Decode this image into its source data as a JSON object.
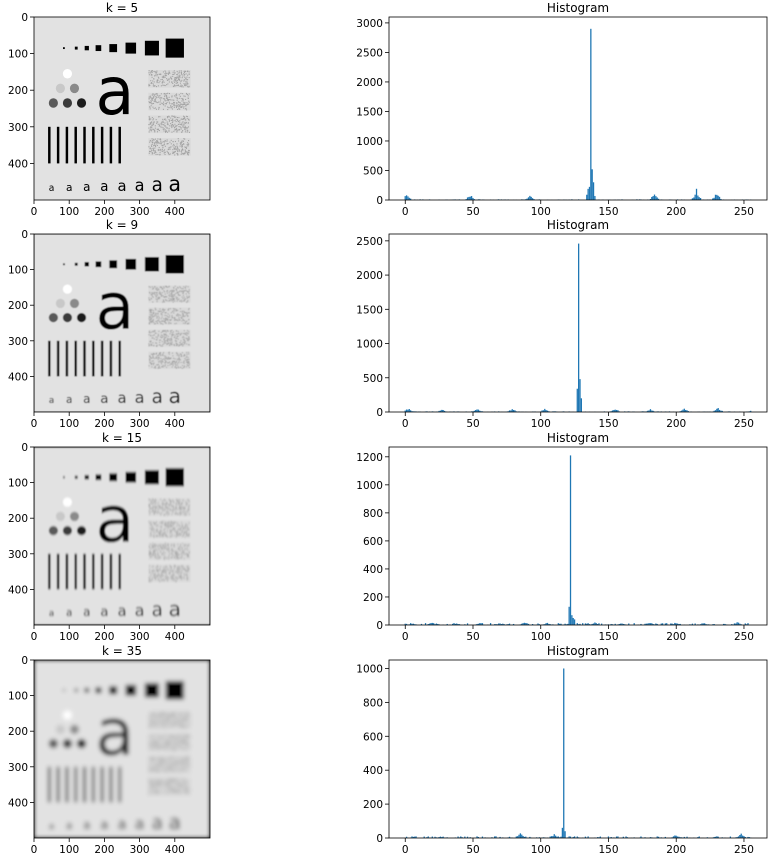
{
  "rows": [
    {
      "image_title": "k = 5",
      "hist_title": "Histogram"
    },
    {
      "image_title": "k = 9",
      "hist_title": "Histogram"
    },
    {
      "image_title": "k = 15",
      "hist_title": "Histogram"
    },
    {
      "image_title": "k = 35",
      "hist_title": "Histogram"
    }
  ],
  "chart_data": [
    {
      "type": "image",
      "title": "k = 5",
      "description_kind": "box-filtered test pattern",
      "xticks": [
        "0",
        "100",
        "200",
        "300",
        "400"
      ],
      "yticks": [
        "0",
        "100",
        "200",
        "300",
        "400"
      ],
      "xlim": [
        0,
        500
      ],
      "ylim": [
        500,
        0
      ],
      "blur_level": 5
    },
    {
      "type": "bar",
      "title": "Histogram",
      "xticks": [
        "0",
        "50",
        "100",
        "150",
        "200",
        "250"
      ],
      "yticks": [
        "0",
        "500",
        "1000",
        "1500",
        "2000",
        "2500",
        "3000"
      ],
      "xlim": [
        -12,
        267
      ],
      "ylim": [
        0,
        3100
      ],
      "color": "#1f77b4",
      "clusters": [
        [
          1,
          100
        ],
        [
          48,
          100
        ],
        [
          92,
          90
        ],
        [
          137,
          420
        ],
        [
          184,
          110
        ],
        [
          215,
          150
        ],
        [
          230,
          120
        ]
      ],
      "peaks": [
        [
          137,
          2900
        ],
        [
          138,
          520
        ],
        [
          139,
          300
        ],
        [
          215,
          190
        ]
      ],
      "baseline_noise": 12
    },
    {
      "type": "image",
      "title": "k = 9",
      "xticks": [
        "0",
        "100",
        "200",
        "300",
        "400"
      ],
      "yticks": [
        "0",
        "100",
        "200",
        "300",
        "400"
      ],
      "xlim": [
        0,
        500
      ],
      "ylim": [
        500,
        0
      ],
      "blur_level": 9
    },
    {
      "type": "bar",
      "title": "Histogram",
      "xticks": [
        "0",
        "50",
        "100",
        "150",
        "200",
        "250"
      ],
      "yticks": [
        "0",
        "500",
        "1000",
        "1500",
        "2000",
        "2500"
      ],
      "xlim": [
        -12,
        267
      ],
      "ylim": [
        0,
        2600
      ],
      "color": "#1f77b4",
      "clusters": [
        [
          2,
          60
        ],
        [
          27,
          40
        ],
        [
          53,
          50
        ],
        [
          79,
          50
        ],
        [
          103,
          50
        ],
        [
          155,
          60
        ],
        [
          181,
          50
        ],
        [
          206,
          55
        ],
        [
          231,
          70
        ],
        [
          256,
          30
        ]
      ],
      "peaks": [
        [
          128,
          2460
        ],
        [
          129,
          480
        ],
        [
          127,
          340
        ],
        [
          130,
          200
        ]
      ],
      "baseline_noise": 10
    },
    {
      "type": "image",
      "title": "k = 15",
      "xticks": [
        "0",
        "100",
        "200",
        "300",
        "400"
      ],
      "yticks": [
        "0",
        "100",
        "200",
        "300",
        "400"
      ],
      "xlim": [
        0,
        500
      ],
      "ylim": [
        500,
        0
      ],
      "blur_level": 15
    },
    {
      "type": "bar",
      "title": "Histogram",
      "xticks": [
        "0",
        "50",
        "100",
        "150",
        "200",
        "250"
      ],
      "yticks": [
        "0",
        "200",
        "400",
        "600",
        "800",
        "1000",
        "1200"
      ],
      "xlim": [
        -12,
        267
      ],
      "ylim": [
        0,
        1270
      ],
      "color": "#1f77b4",
      "clusters": [
        [
          5,
          15
        ],
        [
          20,
          20
        ],
        [
          38,
          15
        ],
        [
          55,
          18
        ],
        [
          70,
          15
        ],
        [
          88,
          20
        ],
        [
          105,
          18
        ],
        [
          140,
          20
        ],
        [
          160,
          18
        ],
        [
          180,
          22
        ],
        [
          200,
          20
        ],
        [
          220,
          18
        ],
        [
          245,
          25
        ]
      ],
      "peaks": [
        [
          122,
          1210
        ],
        [
          121,
          130
        ],
        [
          123,
          70
        ],
        [
          124,
          50
        ],
        [
          125,
          40
        ]
      ],
      "baseline_noise": 14
    },
    {
      "type": "image",
      "title": "k = 35",
      "xticks": [
        "0",
        "100",
        "200",
        "300",
        "400"
      ],
      "yticks": [
        "0",
        "100",
        "200",
        "300",
        "400"
      ],
      "xlim": [
        0,
        500
      ],
      "ylim": [
        500,
        0
      ],
      "blur_level": 35
    },
    {
      "type": "bar",
      "title": "Histogram",
      "xticks": [
        "0",
        "50",
        "100",
        "150",
        "200",
        "250"
      ],
      "yticks": [
        "0",
        "200",
        "400",
        "600",
        "800",
        "1000"
      ],
      "xlim": [
        -12,
        267
      ],
      "ylim": [
        0,
        1050
      ],
      "color": "#1f77b4",
      "clusters": [
        [
          85,
          30
        ],
        [
          110,
          25
        ],
        [
          200,
          20
        ],
        [
          248,
          30
        ]
      ],
      "peaks": [
        [
          117,
          1000
        ],
        [
          116,
          60
        ],
        [
          118,
          40
        ]
      ],
      "baseline_noise": 10
    }
  ]
}
